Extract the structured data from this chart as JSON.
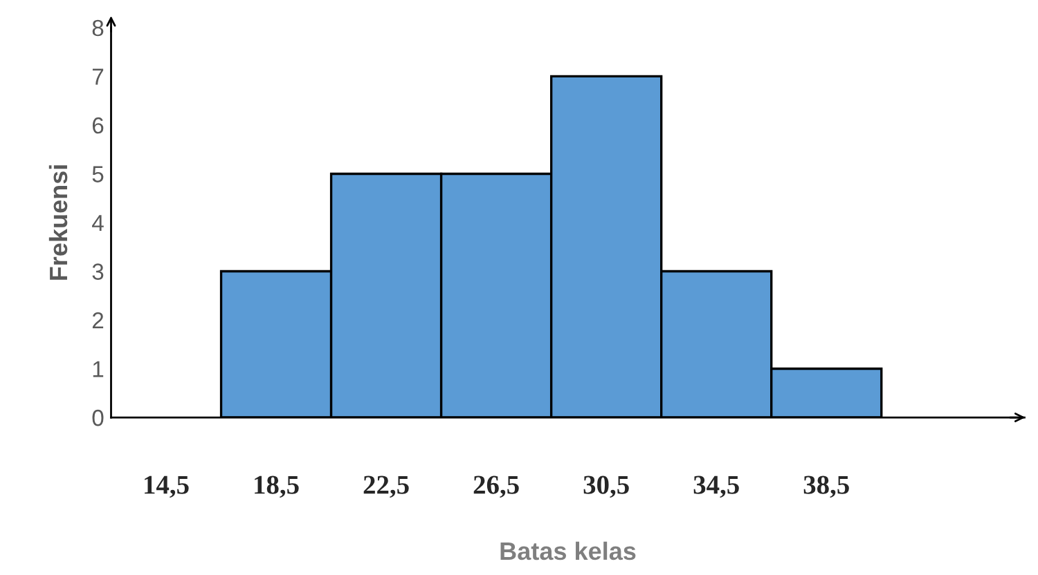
{
  "chart_data": {
    "type": "bar",
    "xlabel": "Batas kelas",
    "ylabel": "Frekuensi",
    "categories": [
      "14,5",
      "18,5",
      "22,5",
      "26,5",
      "30,5",
      "34,5",
      "38,5"
    ],
    "values": [
      0,
      3,
      5,
      5,
      7,
      3,
      1
    ],
    "color": "#5b9bd5",
    "ylim": [
      0,
      8
    ],
    "yticks": [
      0,
      1,
      2,
      3,
      4,
      5,
      6,
      7,
      8
    ],
    "grid": false,
    "legend": false
  }
}
